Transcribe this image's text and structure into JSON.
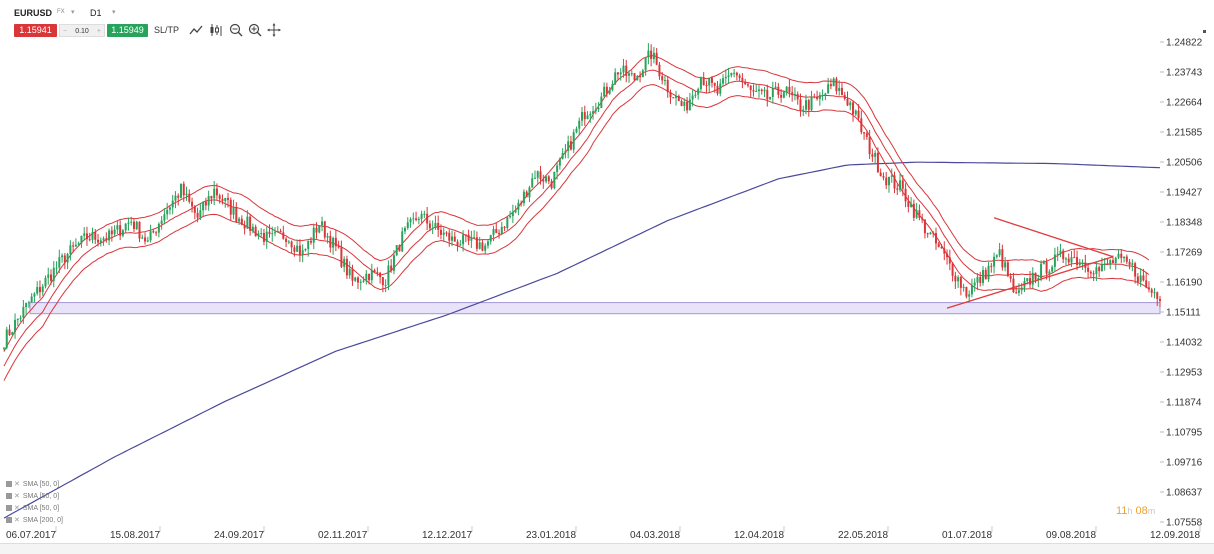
{
  "toolbar": {
    "symbol": "EURUSD",
    "market": "FX",
    "timeframe": "D1",
    "bid": "1.15941",
    "volume": "0.10",
    "volume_minus": "−",
    "volume_plus": "+",
    "ask": "1.15949",
    "sltp": "SL/TP",
    "icons": [
      "line-chart-icon",
      "candles-icon",
      "zoom-out-icon",
      "zoom-in-icon",
      "crosshair-icon"
    ]
  },
  "timer": {
    "hours": "11",
    "h_label": "h",
    "minutes": "08",
    "m_label": "m"
  },
  "indicators": [
    {
      "label": "SMA [50, 0]"
    },
    {
      "label": "SMA [50, 0]"
    },
    {
      "label": "SMA [50, 0]"
    },
    {
      "label": "SMA [200, 0]"
    }
  ],
  "colors": {
    "bull": "#27a35c",
    "bear": "#d9363a",
    "sma_env": "#d9363a",
    "sma200": "#4a4a9c",
    "zone_fill": "#e6e0f8",
    "zone_stroke": "#9c8fd6",
    "triangle": "#e03a3a",
    "axis_text": "#333333"
  },
  "chart_data": {
    "type": "candlestick",
    "symbol": "EURUSD",
    "timeframe": "D1",
    "y_ticks": [
      "1.24822",
      "1.23743",
      "1.22664",
      "1.21585",
      "1.20506",
      "1.19427",
      "1.18348",
      "1.17269",
      "1.16190",
      "1.15111",
      "1.14032",
      "1.12953",
      "1.11874",
      "1.10795",
      "1.09716",
      "1.08637",
      "1.07558"
    ],
    "x_ticks": [
      "06.07.2017",
      "15.08.2017",
      "24.09.2017",
      "02.11.2017",
      "12.12.2017",
      "23.01.2018",
      "04.03.2018",
      "12.04.2018",
      "22.05.2018",
      "01.07.2018",
      "09.08.2018",
      "12.09.2018"
    ],
    "ylim": [
      1.07558,
      1.24822
    ],
    "support_zone": [
      1.1505,
      1.1545
    ],
    "close_path": [
      [
        0,
        1.141
      ],
      [
        8,
        1.153
      ],
      [
        14,
        1.161
      ],
      [
        22,
        1.171
      ],
      [
        30,
        1.178
      ],
      [
        38,
        1.178
      ],
      [
        46,
        1.184
      ],
      [
        52,
        1.176
      ],
      [
        58,
        1.187
      ],
      [
        64,
        1.195
      ],
      [
        70,
        1.185
      ],
      [
        76,
        1.195
      ],
      [
        84,
        1.186
      ],
      [
        90,
        1.181
      ],
      [
        96,
        1.177
      ],
      [
        102,
        1.179
      ],
      [
        108,
        1.172
      ],
      [
        114,
        1.183
      ],
      [
        120,
        1.174
      ],
      [
        126,
        1.162
      ],
      [
        132,
        1.165
      ],
      [
        138,
        1.163
      ],
      [
        144,
        1.178
      ],
      [
        150,
        1.186
      ],
      [
        156,
        1.181
      ],
      [
        162,
        1.177
      ],
      [
        168,
        1.176
      ],
      [
        174,
        1.175
      ],
      [
        180,
        1.182
      ],
      [
        186,
        1.189
      ],
      [
        192,
        1.201
      ],
      [
        198,
        1.198
      ],
      [
        204,
        1.21
      ],
      [
        210,
        1.223
      ],
      [
        216,
        1.228
      ],
      [
        222,
        1.238
      ],
      [
        228,
        1.235
      ],
      [
        234,
        1.244
      ],
      [
        240,
        1.232
      ],
      [
        246,
        1.224
      ],
      [
        252,
        1.236
      ],
      [
        258,
        1.23
      ],
      [
        264,
        1.238
      ],
      [
        270,
        1.23
      ],
      [
        276,
        1.228
      ],
      [
        282,
        1.231
      ],
      [
        288,
        1.225
      ],
      [
        294,
        1.227
      ],
      [
        300,
        1.233
      ],
      [
        306,
        1.226
      ],
      [
        312,
        1.212
      ],
      [
        318,
        1.2
      ],
      [
        324,
        1.196
      ],
      [
        330,
        1.186
      ],
      [
        336,
        1.177
      ],
      [
        342,
        1.168
      ],
      [
        348,
        1.158
      ],
      [
        354,
        1.164
      ],
      [
        360,
        1.172
      ],
      [
        366,
        1.156
      ],
      [
        372,
        1.164
      ],
      [
        378,
        1.168
      ],
      [
        384,
        1.172
      ],
      [
        390,
        1.169
      ],
      [
        396,
        1.166
      ],
      [
        402,
        1.17
      ],
      [
        408,
        1.167
      ],
      [
        414,
        1.159
      ],
      [
        418,
        1.1575
      ]
    ],
    "sma200_path": [
      [
        0,
        1.077
      ],
      [
        40,
        1.099
      ],
      [
        80,
        1.119
      ],
      [
        120,
        1.137
      ],
      [
        160,
        1.15
      ],
      [
        200,
        1.165
      ],
      [
        240,
        1.184
      ],
      [
        280,
        1.199
      ],
      [
        305,
        1.204
      ],
      [
        330,
        1.205
      ],
      [
        380,
        1.2045
      ],
      [
        418,
        1.203
      ]
    ],
    "triangle": {
      "upper": [
        [
          358,
          1.185
        ],
        [
          440,
          1.171
        ]
      ],
      "lower": [
        [
          341,
          1.1525
        ],
        [
          440,
          1.171
        ]
      ]
    }
  }
}
